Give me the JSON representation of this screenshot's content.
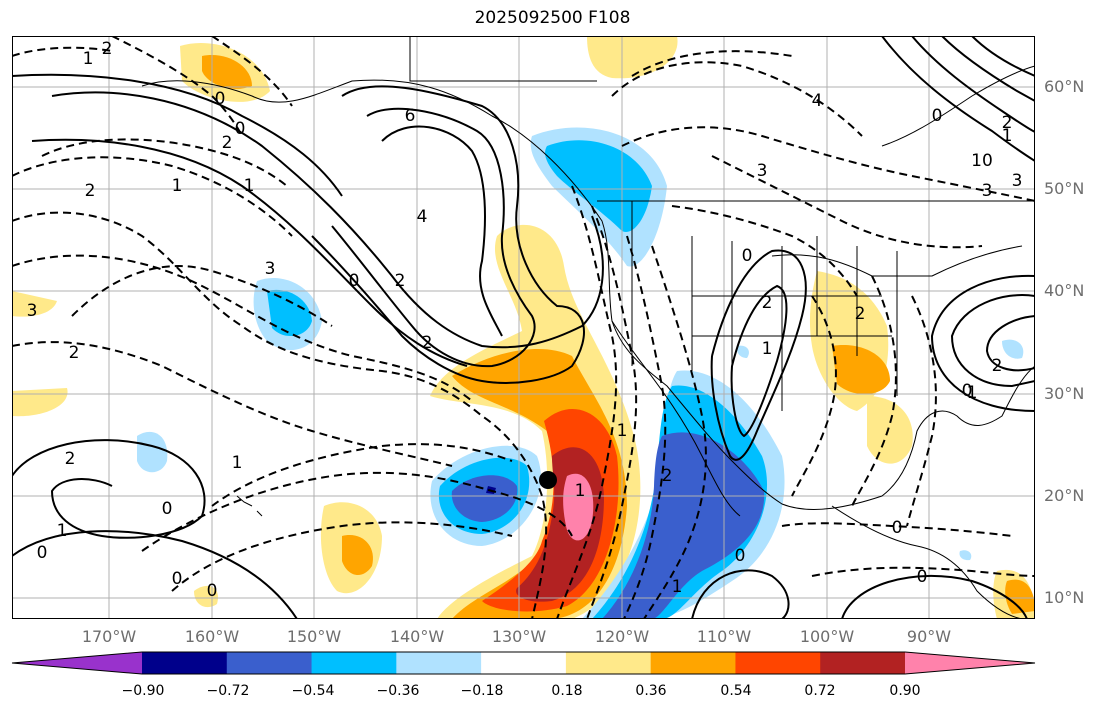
{
  "title": "2025092500 F108",
  "lat_labels": [
    "60°N",
    "50°N",
    "40°N",
    "30°N",
    "20°N",
    "10°N"
  ],
  "lon_labels": [
    "170°W",
    "160°W",
    "150°W",
    "140°W",
    "130°W",
    "120°W",
    "110°W",
    "100°W",
    "90°W"
  ],
  "colorbar": {
    "ticks": [
      "−0.90",
      "−0.72",
      "−0.54",
      "−0.36",
      "−0.18",
      "0.18",
      "0.36",
      "0.54",
      "0.72",
      "0.90"
    ],
    "colors": [
      "#9932cc",
      "#00008b",
      "#3a5fcd",
      "#00bfff",
      "#b0e2ff",
      "#ffffff",
      "#ffe98a",
      "#ffa500",
      "#ff4500",
      "#b22222",
      "#ff82ab"
    ]
  },
  "contour_labels": [
    "2",
    "1",
    "0",
    "0",
    "2",
    "1",
    "1",
    "6",
    "4",
    "2",
    "0",
    "3",
    "2",
    "3",
    "2",
    "1",
    "0",
    "2",
    "1",
    "0",
    "2",
    "4",
    "3",
    "10",
    "3",
    "3",
    "0",
    "2",
    "1",
    "2",
    "1",
    "0",
    "1",
    "2",
    "0",
    "2",
    "1",
    "1",
    "0",
    "0",
    "2",
    "0",
    "1",
    "0",
    "0"
  ],
  "storm_marker": "storm-center"
}
